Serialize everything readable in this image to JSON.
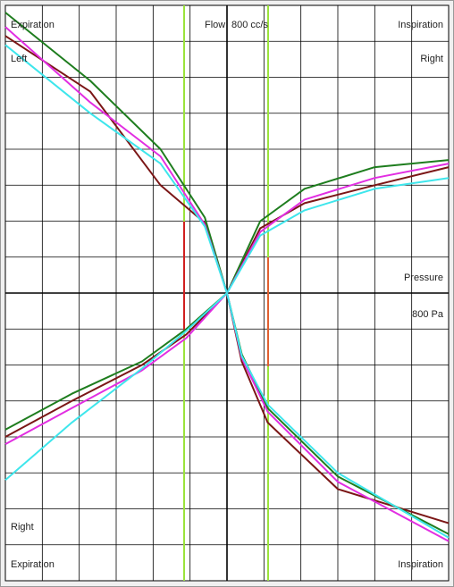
{
  "chart_data": {
    "type": "line",
    "labels": {
      "top_left": "Expiration",
      "flow": "Flow",
      "flow_scale": "800 cc/s",
      "top_right": "Inspiration",
      "left_side": "Left",
      "right_top": "Right",
      "pressure": "Pressure",
      "pressure_scale": "800 Pa",
      "right_bottom": "Right",
      "bottom_left": "Expiration",
      "bottom_right": "Inspiration"
    },
    "xlim": [
      -600,
      600
    ],
    "ylim": [
      -800,
      800
    ],
    "xticks": [
      -600,
      -500,
      -400,
      -300,
      -200,
      -100,
      0,
      100,
      200,
      300,
      400,
      500,
      600
    ],
    "yticks": [
      -800,
      -700,
      -600,
      -500,
      -400,
      -300,
      -200,
      -100,
      0,
      100,
      200,
      300,
      400,
      500,
      600,
      700,
      800
    ],
    "grid": true,
    "series": [
      {
        "color": "#7b1616",
        "x": [
          -600,
          -420,
          -230,
          -110,
          0,
          90,
          210,
          400,
          600
        ],
        "values": [
          -400,
          -300,
          -200,
          -115,
          0,
          180,
          250,
          300,
          350
        ]
      },
      {
        "color": "#1e7d1e",
        "x": [
          -600,
          -420,
          -230,
          -110,
          0,
          90,
          210,
          400,
          600
        ],
        "values": [
          -380,
          -280,
          -190,
          -100,
          0,
          200,
          290,
          350,
          370
        ]
      },
      {
        "color": "#e22ee2",
        "x": [
          -600,
          -420,
          -230,
          -110,
          0,
          90,
          210,
          400,
          600
        ],
        "values": [
          -420,
          -320,
          -215,
          -125,
          0,
          170,
          260,
          320,
          360
        ]
      },
      {
        "color": "#3ee6ec",
        "x": [
          -600,
          -420,
          -230,
          -110,
          0,
          90,
          210,
          400,
          600
        ],
        "values": [
          -520,
          -360,
          -210,
          -105,
          0,
          160,
          230,
          290,
          320
        ]
      },
      {
        "color": "#7b1616",
        "x": [
          -600,
          -370,
          -180,
          -60,
          0,
          40,
          110,
          300,
          600
        ],
        "values": [
          715,
          560,
          300,
          195,
          0,
          -190,
          -360,
          -545,
          -640
        ]
      },
      {
        "color": "#1e7d1e",
        "x": [
          -600,
          -370,
          -180,
          -60,
          0,
          40,
          110,
          300,
          600
        ],
        "values": [
          780,
          590,
          400,
          210,
          0,
          -170,
          -320,
          -510,
          -670
        ]
      },
      {
        "color": "#e22ee2",
        "x": [
          -600,
          -370,
          -180,
          -60,
          0,
          40,
          110,
          300,
          600
        ],
        "values": [
          740,
          530,
          380,
          190,
          0,
          -180,
          -330,
          -525,
          -690
        ]
      },
      {
        "color": "#3ee6ec",
        "x": [
          -600,
          -370,
          -180,
          -60,
          0,
          40,
          110,
          300,
          600
        ],
        "values": [
          690,
          500,
          360,
          185,
          0,
          -175,
          -310,
          -500,
          -680
        ]
      }
    ]
  }
}
